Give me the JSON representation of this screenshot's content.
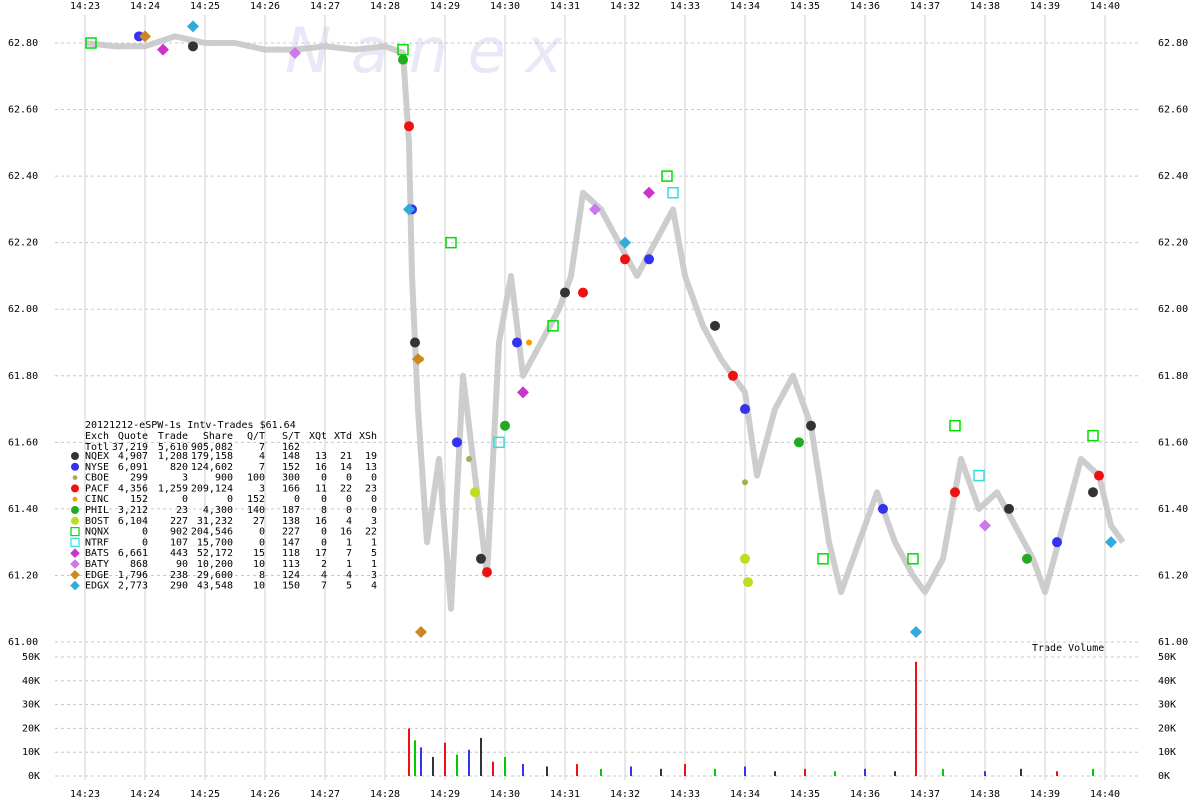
{
  "chart_data": {
    "type": "scatter",
    "title": "20121212-eSPW-1s Intv-Trades $61.64",
    "watermark": "N a n e x",
    "volume_label": "Trade Volume",
    "xlim": [
      862.5,
      880.6
    ],
    "xticks": [
      {
        "value": 863,
        "label": "14:23"
      },
      {
        "value": 864,
        "label": "14:24"
      },
      {
        "value": 865,
        "label": "14:25"
      },
      {
        "value": 866,
        "label": "14:26"
      },
      {
        "value": 867,
        "label": "14:27"
      },
      {
        "value": 868,
        "label": "14:28"
      },
      {
        "value": 869,
        "label": "14:29"
      },
      {
        "value": 870,
        "label": "14:30"
      },
      {
        "value": 871,
        "label": "14:31"
      },
      {
        "value": 872,
        "label": "14:32"
      },
      {
        "value": 873,
        "label": "14:33"
      },
      {
        "value": 874,
        "label": "14:34"
      },
      {
        "value": 875,
        "label": "14:35"
      },
      {
        "value": 876,
        "label": "14:36"
      },
      {
        "value": 877,
        "label": "14:37"
      },
      {
        "value": 878,
        "label": "14:38"
      },
      {
        "value": 879,
        "label": "14:39"
      },
      {
        "value": 880,
        "label": "14:40"
      }
    ],
    "ylim": [
      61.0,
      62.8
    ],
    "yticks": [
      {
        "value": 61.0,
        "label": "61.00"
      },
      {
        "value": 61.2,
        "label": "61.20"
      },
      {
        "value": 61.4,
        "label": "61.40"
      },
      {
        "value": 61.6,
        "label": "61.60"
      },
      {
        "value": 61.8,
        "label": "61.80"
      },
      {
        "value": 62.0,
        "label": "62.00"
      },
      {
        "value": 62.2,
        "label": "62.20"
      },
      {
        "value": 62.4,
        "label": "62.40"
      },
      {
        "value": 62.6,
        "label": "62.60"
      },
      {
        "value": 62.8,
        "label": "62.80"
      }
    ],
    "y2lim": [
      0,
      50000
    ],
    "y2ticks": [
      {
        "value": 0,
        "label": "0K"
      },
      {
        "value": 10000,
        "label": "10K"
      },
      {
        "value": 20000,
        "label": "20K"
      },
      {
        "value": 30000,
        "label": "30K"
      },
      {
        "value": 40000,
        "label": "40K"
      },
      {
        "value": 50000,
        "label": "50K"
      }
    ],
    "grid": true,
    "trace": {
      "color": "#c8c8c8",
      "x": [
        863.0,
        863.5,
        864.0,
        864.5,
        865.0,
        865.5,
        866.0,
        866.5,
        867.0,
        867.5,
        868.0,
        868.3,
        868.4,
        868.45,
        868.55,
        868.7,
        868.9,
        869.1,
        869.3,
        869.5,
        869.7,
        869.9,
        870.1,
        870.3,
        870.6,
        870.9,
        871.1,
        871.3,
        871.6,
        871.9,
        872.2,
        872.5,
        872.8,
        873.0,
        873.3,
        873.6,
        874.0,
        874.2,
        874.5,
        874.8,
        875.1,
        875.4,
        875.6,
        875.9,
        876.2,
        876.5,
        876.8,
        877.0,
        877.3,
        877.6,
        877.9,
        878.2,
        878.5,
        878.8,
        879.0,
        879.3,
        879.6,
        879.9,
        880.1,
        880.3
      ],
      "values": [
        62.8,
        62.79,
        62.79,
        62.82,
        62.8,
        62.8,
        62.78,
        62.78,
        62.79,
        62.78,
        62.79,
        62.77,
        62.5,
        62.1,
        61.7,
        61.3,
        61.55,
        61.1,
        61.8,
        61.5,
        61.2,
        61.9,
        62.1,
        61.8,
        61.9,
        62.0,
        62.1,
        62.35,
        62.3,
        62.2,
        62.1,
        62.2,
        62.3,
        62.1,
        61.95,
        61.85,
        61.75,
        61.5,
        61.7,
        61.8,
        61.65,
        61.3,
        61.15,
        61.3,
        61.45,
        61.3,
        61.2,
        61.15,
        61.25,
        61.55,
        61.4,
        61.45,
        61.35,
        61.25,
        61.15,
        61.35,
        61.55,
        61.5,
        61.35,
        61.3
      ]
    },
    "legend_columns": [
      "Exch",
      "Quote",
      "Trade",
      "Share",
      "Q/T",
      "S/T",
      "XQt",
      "XTd",
      "XSh"
    ],
    "total": {
      "name": "Totl",
      "stats": [
        "37,219",
        "5,610",
        "905,082",
        "7",
        "162",
        "",
        "",
        ""
      ]
    },
    "series": [
      {
        "name": "NQEX",
        "color": "#333333",
        "marker": "circle",
        "stats": [
          "4,907",
          "1,208",
          "179,158",
          "4",
          "148",
          "13",
          "21",
          "19"
        ],
        "x": [
          864.8,
          868.5,
          869.6,
          871.0,
          873.5,
          875.1,
          878.4,
          879.8
        ],
        "values": [
          62.79,
          61.9,
          61.25,
          62.05,
          61.95,
          61.65,
          61.4,
          61.45
        ]
      },
      {
        "name": "NYSE",
        "color": "#3333ee",
        "marker": "circle",
        "stats": [
          "6,091",
          "820",
          "124,602",
          "7",
          "152",
          "16",
          "14",
          "13"
        ],
        "x": [
          863.9,
          868.45,
          869.2,
          870.2,
          872.4,
          874.0,
          876.3,
          879.2
        ],
        "values": [
          62.82,
          62.3,
          61.6,
          61.9,
          62.15,
          61.7,
          61.4,
          61.3
        ]
      },
      {
        "name": "CBOE",
        "color": "#aaaa55",
        "marker": "dot",
        "stats": [
          "299",
          "3",
          "900",
          "100",
          "300",
          "0",
          "0",
          "0"
        ],
        "x": [
          869.4,
          874.0,
          878.0
        ],
        "values": [
          61.55,
          61.48,
          61.35
        ]
      },
      {
        "name": "PACF",
        "color": "#ee1111",
        "marker": "circle",
        "stats": [
          "4,356",
          "1,259",
          "209,124",
          "3",
          "166",
          "11",
          "22",
          "23"
        ],
        "x": [
          868.4,
          869.7,
          871.3,
          872.0,
          873.8,
          877.5,
          879.9
        ],
        "values": [
          62.55,
          61.21,
          62.05,
          62.15,
          61.8,
          61.45,
          61.5
        ]
      },
      {
        "name": "CINC",
        "color": "#ff9900",
        "marker": "dot",
        "stats": [
          "152",
          "0",
          "0",
          "152",
          "0",
          "0",
          "0",
          "0"
        ],
        "x": [
          868.6,
          870.4
        ],
        "values": [
          61.85,
          61.9
        ]
      },
      {
        "name": "PHIL",
        "color": "#22aa22",
        "marker": "circle",
        "stats": [
          "3,212",
          "23",
          "4,300",
          "140",
          "187",
          "8",
          "0",
          "0"
        ],
        "x": [
          868.3,
          870.0,
          874.9,
          878.7
        ],
        "values": [
          62.75,
          61.65,
          61.6,
          61.25
        ]
      },
      {
        "name": "BOST",
        "color": "#bbdd22",
        "marker": "circle",
        "stats": [
          "6,104",
          "227",
          "31,232",
          "27",
          "138",
          "16",
          "4",
          "3"
        ],
        "x": [
          869.5,
          874.0,
          874.05
        ],
        "values": [
          61.45,
          61.25,
          61.18
        ]
      },
      {
        "name": "NQNX",
        "color": "#00dd00",
        "marker": "square",
        "stats": [
          "0",
          "902",
          "204,546",
          "0",
          "227",
          "0",
          "16",
          "22"
        ],
        "x": [
          863.1,
          868.3,
          869.1,
          870.8,
          872.7,
          875.3,
          876.8,
          877.5,
          879.8
        ],
        "values": [
          62.8,
          62.78,
          62.2,
          61.95,
          62.4,
          61.25,
          61.25,
          61.65,
          61.62
        ]
      },
      {
        "name": "NTRF",
        "color": "#33dddd",
        "marker": "square",
        "stats": [
          "0",
          "107",
          "15,700",
          "0",
          "147",
          "0",
          "1",
          "1"
        ],
        "x": [
          869.9,
          872.8,
          877.9
        ],
        "values": [
          61.6,
          62.35,
          61.5
        ]
      },
      {
        "name": "BATS",
        "color": "#cc33cc",
        "marker": "diamond",
        "stats": [
          "6,661",
          "443",
          "52,172",
          "15",
          "118",
          "17",
          "7",
          "5"
        ],
        "x": [
          864.3,
          870.3,
          872.4
        ],
        "values": [
          62.78,
          61.75,
          62.35
        ]
      },
      {
        "name": "BATY",
        "color": "#cc77ee",
        "marker": "diamond",
        "stats": [
          "868",
          "90",
          "10,200",
          "10",
          "113",
          "2",
          "1",
          "1"
        ],
        "x": [
          866.5,
          871.5,
          878.0
        ],
        "values": [
          62.77,
          62.3,
          61.35
        ]
      },
      {
        "name": "EDGE",
        "color": "#cc8822",
        "marker": "diamond",
        "stats": [
          "1,796",
          "238",
          "29,600",
          "8",
          "124",
          "4",
          "4",
          "3"
        ],
        "x": [
          864.0,
          868.6,
          868.55
        ],
        "values": [
          62.82,
          61.03,
          61.85
        ]
      },
      {
        "name": "EDGX",
        "color": "#33aadd",
        "marker": "diamond",
        "stats": [
          "2,773",
          "290",
          "43,548",
          "10",
          "150",
          "7",
          "5",
          "4"
        ],
        "x": [
          864.8,
          868.4,
          872.0,
          876.85,
          880.1
        ],
        "values": [
          62.85,
          62.3,
          62.2,
          61.03,
          61.3
        ]
      }
    ],
    "volume": {
      "colors": [
        "#ee1111",
        "#00cc00",
        "#3333ee",
        "#333333"
      ],
      "x": [
        868.4,
        868.5,
        868.6,
        868.8,
        869.0,
        869.2,
        869.4,
        869.6,
        869.8,
        870.0,
        870.3,
        870.7,
        871.2,
        871.6,
        872.1,
        872.6,
        873.0,
        873.5,
        874.0,
        874.5,
        875.0,
        875.5,
        876.0,
        876.5,
        876.85,
        877.3,
        878.0,
        878.6,
        879.2,
        879.8
      ],
      "values": [
        20000,
        15000,
        12000,
        8000,
        14000,
        9000,
        11000,
        16000,
        6000,
        8000,
        5000,
        4000,
        5000,
        3000,
        4000,
        3000,
        5000,
        3000,
        4000,
        2000,
        3000,
        2000,
        3000,
        2000,
        48000,
        3000,
        2000,
        3000,
        2000,
        3000
      ]
    }
  }
}
